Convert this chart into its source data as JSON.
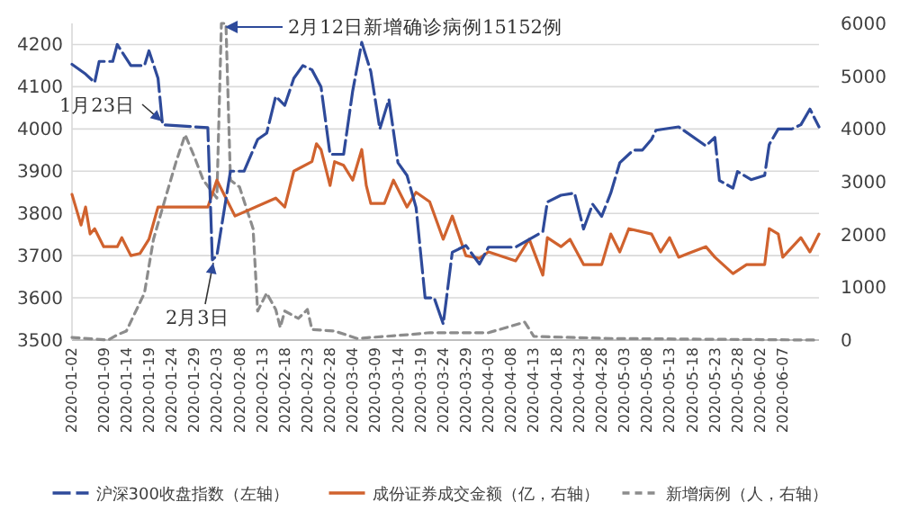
{
  "chart_data": {
    "type": "line",
    "xlim": [
      "2020-01-02",
      "2020-06-15"
    ],
    "xticks": [
      "2020-01-02",
      "2020-01-09",
      "2020-01-14",
      "2020-01-19",
      "2020-01-24",
      "2020-01-29",
      "2020-02-03",
      "2020-02-08",
      "2020-02-13",
      "2020-02-18",
      "2020-02-23",
      "2020-02-28",
      "2020-03-04",
      "2020-03-09",
      "2020-03-14",
      "2020-03-19",
      "2020-03-24",
      "2020-03-29",
      "2020-04-03",
      "2020-04-08",
      "2020-04-13",
      "2020-04-18",
      "2020-04-23",
      "2020-04-28",
      "2020-05-03",
      "2020-05-08",
      "2020-05-13",
      "2020-05-18",
      "2020-05-23",
      "2020-05-28",
      "2020-06-02",
      "2020-06-07"
    ],
    "ylim": [
      3500,
      4250
    ],
    "yticks": [
      3500,
      3600,
      3700,
      3800,
      3900,
      4000,
      4100,
      4200
    ],
    "y2lim": [
      0,
      6000
    ],
    "y2ticks": [
      0,
      1000,
      2000,
      3000,
      4000,
      5000,
      6000
    ],
    "grid": "y",
    "legend": "bottom",
    "annotations": [
      "2月12日新增确诊病例15152例",
      {
        "text": "1月23日",
        "x": "2020-01-23",
        "y": 4010
      },
      {
        "text": "2月3日",
        "x": "2020-02-03",
        "y": 3700
      }
    ],
    "series": [
      {
        "name": "沪深300收盘指数（左轴）",
        "color": "#2e4a9a",
        "line_style": "dashed",
        "x": [
          "2020-01-02",
          "2020-01-05",
          "2020-01-07",
          "2020-01-08",
          "2020-01-11",
          "2020-01-12",
          "2020-01-15",
          "2020-01-18",
          "2020-01-19",
          "2020-01-21",
          "2020-01-22",
          "2020-02-01",
          "2020-02-02",
          "2020-02-03",
          "2020-02-06",
          "2020-02-09",
          "2020-02-12",
          "2020-02-14",
          "2020-02-16",
          "2020-02-18",
          "2020-02-20",
          "2020-02-22",
          "2020-02-24",
          "2020-02-26",
          "2020-02-28",
          "2020-03-02",
          "2020-03-04",
          "2020-03-06",
          "2020-03-08",
          "2020-03-10",
          "2020-03-12",
          "2020-03-14",
          "2020-03-16",
          "2020-03-18",
          "2020-03-20",
          "2020-03-22",
          "2020-03-24",
          "2020-03-26",
          "2020-03-29",
          "2020-04-01",
          "2020-04-03",
          "2020-04-09",
          "2020-04-15",
          "2020-04-16",
          "2020-04-19",
          "2020-04-22",
          "2020-04-24",
          "2020-04-26",
          "2020-04-28",
          "2020-04-30",
          "2020-05-02",
          "2020-05-05",
          "2020-05-07",
          "2020-05-09",
          "2020-05-10",
          "2020-05-15",
          "2020-05-21",
          "2020-05-23",
          "2020-05-24",
          "2020-05-27",
          "2020-05-28",
          "2020-05-31",
          "2020-06-03",
          "2020-06-04",
          "2020-06-06",
          "2020-06-09",
          "2020-06-11",
          "2020-06-13",
          "2020-06-15"
        ],
        "values": [
          4153,
          4130,
          4110,
          4160,
          4160,
          4200,
          4150,
          4150,
          4185,
          4120,
          4010,
          4003,
          3690,
          3700,
          3900,
          3900,
          3975,
          3990,
          4077,
          4056,
          4120,
          4150,
          4140,
          4100,
          3940,
          3940,
          4090,
          4205,
          4136,
          4000,
          4070,
          3920,
          3890,
          3814,
          3600,
          3600,
          3538,
          3708,
          3724,
          3680,
          3720,
          3720,
          3757,
          3827,
          3843,
          3848,
          3763,
          3822,
          3793,
          3848,
          3920,
          3950,
          3950,
          3975,
          3997,
          4005,
          3960,
          3980,
          3878,
          3860,
          3899,
          3880,
          3890,
          3963,
          4000,
          4000,
          4010,
          4047,
          4005
        ]
      },
      {
        "name": "成份证券成交金额（亿，右轴）",
        "color": "#d0622e",
        "line_style": "solid",
        "axis": "y2",
        "x": [
          "2020-01-02",
          "2020-01-04",
          "2020-01-05",
          "2020-01-06",
          "2020-01-07",
          "2020-01-09",
          "2020-01-12",
          "2020-01-13",
          "2020-01-15",
          "2020-01-17",
          "2020-01-19",
          "2020-01-21",
          "2020-02-01",
          "2020-02-03",
          "2020-02-05",
          "2020-02-07",
          "2020-02-16",
          "2020-02-18",
          "2020-02-20",
          "2020-02-24",
          "2020-02-25",
          "2020-02-26",
          "2020-02-28",
          "2020-02-29",
          "2020-03-02",
          "2020-03-04",
          "2020-03-06",
          "2020-03-07",
          "2020-03-08",
          "2020-03-11",
          "2020-03-13",
          "2020-03-16",
          "2020-03-18",
          "2020-03-21",
          "2020-03-24",
          "2020-03-26",
          "2020-03-29",
          "2020-04-01",
          "2020-04-03",
          "2020-04-09",
          "2020-04-12",
          "2020-04-15",
          "2020-04-16",
          "2020-04-19",
          "2020-04-21",
          "2020-04-24",
          "2020-04-28",
          "2020-04-30",
          "2020-05-02",
          "2020-05-04",
          "2020-05-09",
          "2020-05-11",
          "2020-05-13",
          "2020-05-15",
          "2020-05-21",
          "2020-05-23",
          "2020-05-27",
          "2020-05-30",
          "2020-06-03",
          "2020-06-04",
          "2020-06-06",
          "2020-06-07",
          "2020-06-11",
          "2020-06-13",
          "2020-06-15"
        ],
        "values": [
          2760,
          2180,
          2520,
          2010,
          2110,
          1770,
          1770,
          1940,
          1600,
          1640,
          1910,
          2520,
          2520,
          3030,
          2690,
          2350,
          2690,
          2520,
          3200,
          3380,
          3720,
          3610,
          2930,
          3380,
          3310,
          3030,
          3610,
          2930,
          2590,
          2590,
          3030,
          2520,
          2800,
          2620,
          1910,
          2350,
          1600,
          1550,
          1670,
          1500,
          1910,
          1230,
          1940,
          1770,
          1910,
          1430,
          1430,
          2010,
          1670,
          2110,
          2010,
          1670,
          1940,
          1570,
          1770,
          1570,
          1260,
          1430,
          1430,
          2110,
          2010,
          1570,
          1940,
          1670,
          2010
        ]
      },
      {
        "name": "新增病例（人，右轴）",
        "color": "#8c8c8c",
        "line_style": "dashed",
        "axis": "y2",
        "x": [
          "2020-01-02",
          "2020-01-10",
          "2020-01-12",
          "2020-01-14",
          "2020-01-18",
          "2020-01-20",
          "2020-01-23",
          "2020-01-25",
          "2020-01-27",
          "2020-01-29",
          "2020-01-31",
          "2020-02-03",
          "2020-02-04",
          "2020-02-05",
          "2020-02-06",
          "2020-02-08",
          "2020-02-11",
          "2020-02-12",
          "2020-02-14",
          "2020-02-16",
          "2020-02-17",
          "2020-02-18",
          "2020-02-21",
          "2020-02-23",
          "2020-02-24",
          "2020-02-29",
          "2020-03-05",
          "2020-03-16",
          "2020-03-21",
          "2020-04-03",
          "2020-04-11",
          "2020-04-13",
          "2020-04-30",
          "2020-06-15"
        ],
        "values": [
          50,
          0,
          100,
          170,
          890,
          1910,
          2800,
          3380,
          3890,
          3480,
          3030,
          2690,
          6000,
          6000,
          3030,
          2900,
          2110,
          550,
          890,
          580,
          240,
          550,
          410,
          580,
          200,
          170,
          30,
          100,
          140,
          140,
          340,
          70,
          30,
          0
        ]
      }
    ]
  }
}
